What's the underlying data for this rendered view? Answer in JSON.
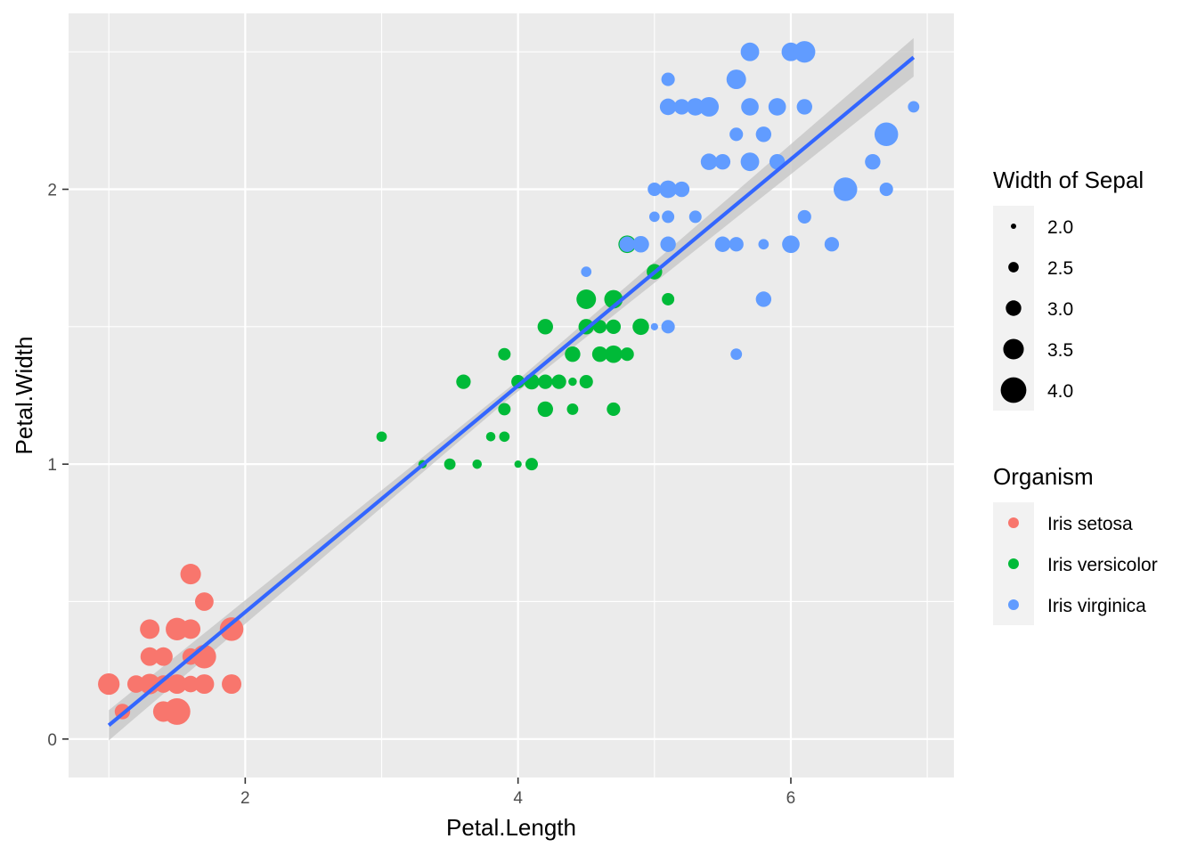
{
  "chart_data": {
    "type": "scatter",
    "title": "",
    "xlabel": "Petal.Length",
    "ylabel": "Petal.Width",
    "xlim": [
      0.705,
      7.195
    ],
    "ylim": [
      -0.14,
      2.64
    ],
    "x_ticks": [
      2,
      4,
      6
    ],
    "y_ticks": [
      0,
      1,
      2
    ],
    "grid": true,
    "smooth": {
      "method": "lm",
      "color": "#3366FF",
      "ribbon_color": "#c4c4c4",
      "line": [
        [
          1.0,
          0.05
        ],
        [
          6.9,
          2.48
        ]
      ],
      "ribbon_halfwidth": [
        0.055,
        0.02,
        0.07
      ]
    },
    "legend_size": {
      "title": "Width of Sepal",
      "entries": [
        {
          "label": "2.0",
          "value": 2.0
        },
        {
          "label": "2.5",
          "value": 2.5
        },
        {
          "label": "3.0",
          "value": 3.0
        },
        {
          "label": "3.5",
          "value": 3.5
        },
        {
          "label": "4.0",
          "value": 4.0
        }
      ]
    },
    "legend_color": {
      "title": "Organism",
      "entries": [
        {
          "label": "Iris setosa",
          "color": "#F8766D"
        },
        {
          "label": "Iris versicolor",
          "color": "#00BA38"
        },
        {
          "label": "Iris virginica",
          "color": "#619CFF"
        }
      ]
    },
    "series": [
      {
        "color": "#F8766D",
        "points": [
          [
            1.0,
            0.2,
            3.6
          ],
          [
            1.1,
            0.1,
            3.0
          ],
          [
            1.2,
            0.2,
            3.2
          ],
          [
            1.3,
            0.2,
            3.5
          ],
          [
            1.3,
            0.3,
            3.3
          ],
          [
            1.3,
            0.4,
            3.4
          ],
          [
            1.4,
            0.2,
            3.0
          ],
          [
            1.4,
            0.3,
            3.3
          ],
          [
            1.4,
            0.2,
            3.2
          ],
          [
            1.5,
            0.1,
            3.4
          ],
          [
            1.5,
            0.2,
            3.4
          ],
          [
            1.5,
            0.4,
            3.7
          ],
          [
            1.5,
            0.1,
            4.1
          ],
          [
            1.6,
            0.6,
            3.5
          ],
          [
            1.6,
            0.2,
            3.1
          ],
          [
            1.6,
            0.4,
            3.4
          ],
          [
            1.7,
            0.5,
            3.3
          ],
          [
            1.7,
            0.3,
            3.8
          ],
          [
            1.7,
            0.2,
            3.4
          ],
          [
            1.9,
            0.4,
            3.8
          ],
          [
            1.9,
            0.2,
            3.4
          ],
          [
            1.6,
            0.3,
            3.1
          ],
          [
            1.4,
            0.1,
            3.5
          ]
        ]
      },
      {
        "color": "#00BA38",
        "points": [
          [
            3.0,
            1.1,
            2.5
          ],
          [
            3.3,
            1.0,
            2.3
          ],
          [
            3.5,
            1.0,
            2.6
          ],
          [
            3.6,
            1.3,
            2.9
          ],
          [
            3.7,
            1.0,
            2.4
          ],
          [
            3.8,
            1.1,
            2.4
          ],
          [
            3.9,
            1.4,
            2.7
          ],
          [
            3.9,
            1.2,
            2.7
          ],
          [
            3.9,
            1.1,
            2.5
          ],
          [
            4.0,
            1.3,
            2.8
          ],
          [
            4.0,
            1.0,
            2.2
          ],
          [
            4.1,
            1.3,
            3.0
          ],
          [
            4.1,
            1.0,
            2.7
          ],
          [
            4.2,
            1.3,
            2.9
          ],
          [
            4.2,
            1.2,
            3.0
          ],
          [
            4.2,
            1.5,
            3.0
          ],
          [
            4.3,
            1.3,
            2.9
          ],
          [
            4.4,
            1.4,
            3.0
          ],
          [
            4.4,
            1.3,
            2.3
          ],
          [
            4.4,
            1.2,
            2.6
          ],
          [
            4.5,
            1.5,
            3.0
          ],
          [
            4.5,
            1.3,
            2.8
          ],
          [
            4.5,
            1.6,
            3.4
          ],
          [
            4.6,
            1.4,
            3.0
          ],
          [
            4.6,
            1.5,
            2.8
          ],
          [
            4.7,
            1.4,
            3.2
          ],
          [
            4.7,
            1.6,
            3.3
          ],
          [
            4.7,
            1.2,
            2.8
          ],
          [
            4.7,
            1.5,
            2.9
          ],
          [
            4.8,
            1.4,
            2.8
          ],
          [
            4.9,
            1.5,
            3.1
          ],
          [
            5.0,
            1.7,
            3.0
          ],
          [
            5.1,
            1.6,
            2.7
          ],
          [
            4.8,
            1.8,
            3.2
          ]
        ]
      },
      {
        "color": "#619CFF",
        "points": [
          [
            4.5,
            1.7,
            2.5
          ],
          [
            4.8,
            1.8,
            3.0
          ],
          [
            4.9,
            1.8,
            3.1
          ],
          [
            5.0,
            2.0,
            2.8
          ],
          [
            5.0,
            1.9,
            2.5
          ],
          [
            5.1,
            2.0,
            3.2
          ],
          [
            5.1,
            2.4,
            2.8
          ],
          [
            5.1,
            2.3,
            3.1
          ],
          [
            5.1,
            1.9,
            2.7
          ],
          [
            5.1,
            1.5,
            2.8
          ],
          [
            5.2,
            2.0,
            3.0
          ],
          [
            5.2,
            2.3,
            3.0
          ],
          [
            5.3,
            1.9,
            2.7
          ],
          [
            5.3,
            2.3,
            3.2
          ],
          [
            5.4,
            2.3,
            3.4
          ],
          [
            5.4,
            2.1,
            3.1
          ],
          [
            5.5,
            2.1,
            3.0
          ],
          [
            5.5,
            1.8,
            3.0
          ],
          [
            5.6,
            2.2,
            2.8
          ],
          [
            5.6,
            2.4,
            3.4
          ],
          [
            5.6,
            1.4,
            2.6
          ],
          [
            5.6,
            1.8,
            2.9
          ],
          [
            5.7,
            2.3,
            3.2
          ],
          [
            5.7,
            2.1,
            3.3
          ],
          [
            5.7,
            2.5,
            3.3
          ],
          [
            5.8,
            1.6,
            3.0
          ],
          [
            5.8,
            2.2,
            3.0
          ],
          [
            5.8,
            1.8,
            2.5
          ],
          [
            5.9,
            2.3,
            3.2
          ],
          [
            5.9,
            2.1,
            3.0
          ],
          [
            6.0,
            2.5,
            3.3
          ],
          [
            6.0,
            1.8,
            3.2
          ],
          [
            6.1,
            2.3,
            3.0
          ],
          [
            6.1,
            2.5,
            3.6
          ],
          [
            6.1,
            1.9,
            2.8
          ],
          [
            6.3,
            1.8,
            2.9
          ],
          [
            6.4,
            2.0,
            3.8
          ],
          [
            6.6,
            2.1,
            3.0
          ],
          [
            6.7,
            2.2,
            3.8
          ],
          [
            6.7,
            2.0,
            2.8
          ],
          [
            6.9,
            2.3,
            2.6
          ],
          [
            5.0,
            1.5,
            2.2
          ],
          [
            5.1,
            1.8,
            3.0
          ]
        ]
      }
    ]
  }
}
